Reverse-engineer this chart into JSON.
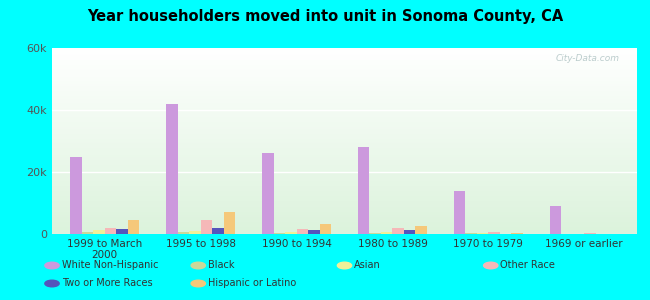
{
  "title": "Year householders moved into unit in Sonoma County, CA",
  "categories": [
    "1999 to March\n2000",
    "1995 to 1998",
    "1990 to 1994",
    "1980 to 1989",
    "1970 to 1979",
    "1969 or earlier"
  ],
  "series": {
    "White Non-Hispanic": [
      25000,
      42000,
      26000,
      28000,
      14000,
      9000
    ],
    "Black": [
      500,
      700,
      400,
      300,
      200,
      100
    ],
    "Asian": [
      1200,
      1000,
      500,
      500,
      200,
      100
    ],
    "Other Race": [
      1800,
      4500,
      1500,
      2000,
      500,
      200
    ],
    "Two or More Races": [
      1500,
      1800,
      1200,
      1200,
      100,
      100
    ],
    "Hispanic or Latino": [
      4500,
      7000,
      3200,
      2500,
      200,
      100
    ]
  },
  "colors": {
    "White Non-Hispanic": "#cc99dd",
    "Black": "#ccd899",
    "Asian": "#f0f099",
    "Other Race": "#f5b8b8",
    "Two or More Races": "#5555bb",
    "Hispanic or Latino": "#f5c87a"
  },
  "legend_row1": [
    "White Non-Hispanic",
    "Black",
    "Asian",
    "Other Race"
  ],
  "legend_row2": [
    "Two or More Races",
    "Hispanic or Latino"
  ],
  "ylim": [
    0,
    60000
  ],
  "yticks": [
    0,
    20000,
    40000,
    60000
  ],
  "ytick_labels": [
    "0",
    "20k",
    "40k",
    "60k"
  ],
  "background_color": "#00ffff",
  "watermark": "City-Data.com",
  "bar_width": 0.12
}
